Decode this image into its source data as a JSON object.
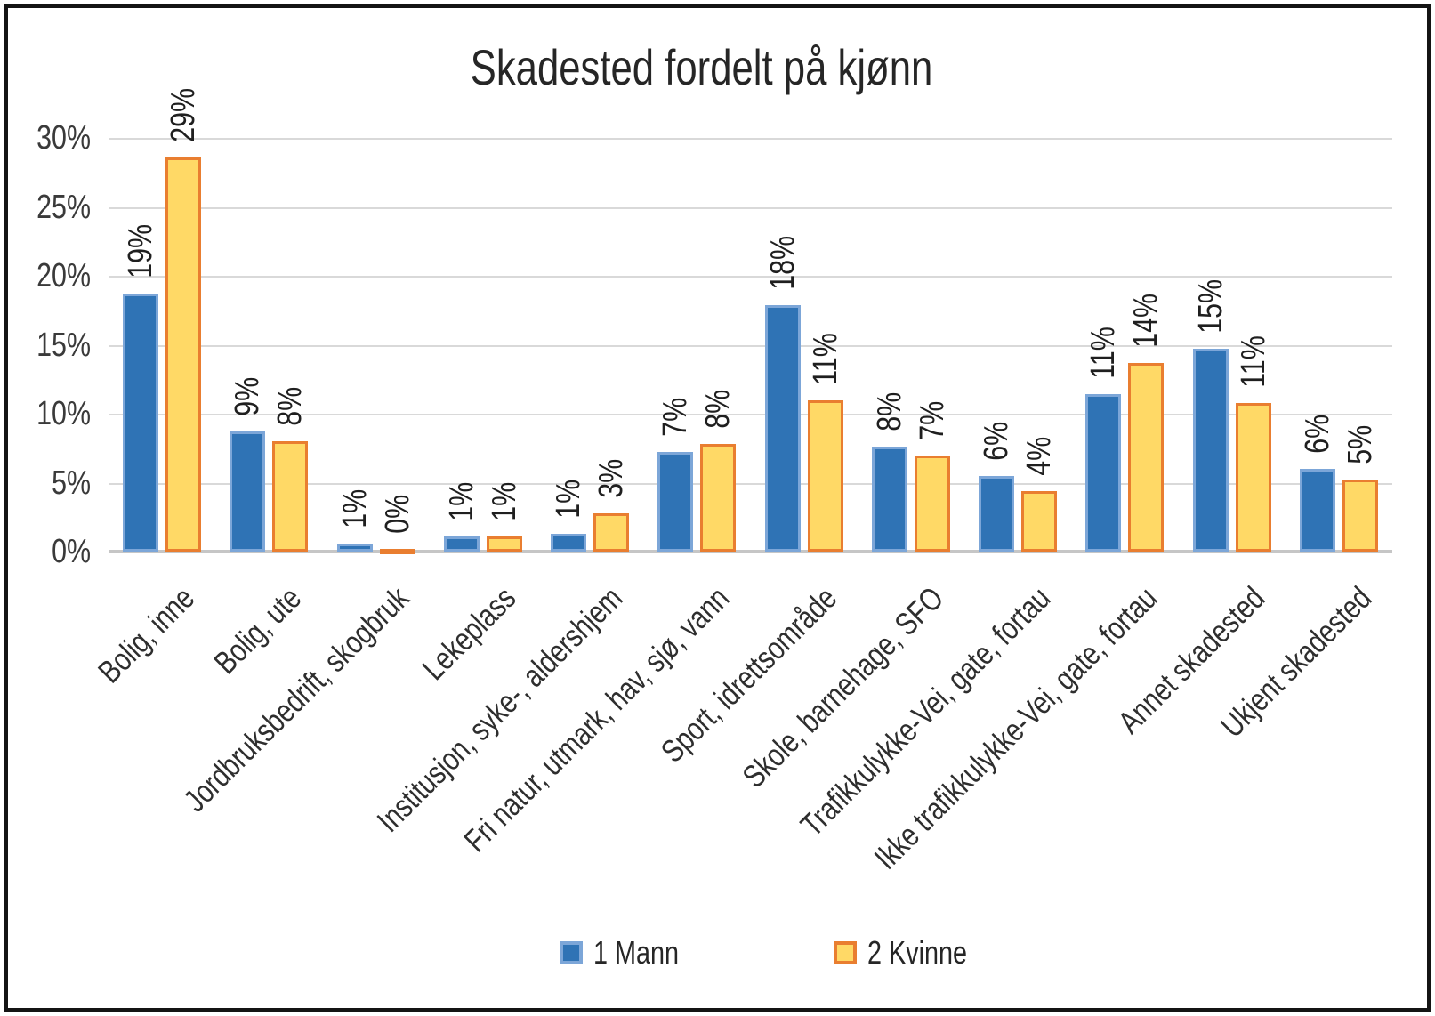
{
  "chart_data": {
    "type": "bar",
    "title": "Skadested fordelt på kjønn",
    "categories": [
      "Bolig, inne",
      "Bolig, ute",
      "Jordbruksbedrift, skogbruk",
      "Lekeplass",
      "Institusjon, syke-, aldershjem",
      "Fri natur, utmark, hav, sjø, vann",
      "Sport, idrettsområde",
      "Skole, barnehage, SFO",
      "Trafikkulykke-Vei, gate, fortau",
      "Ikke trafikkulykke-Vei, gate, fortau",
      "Annet skadested",
      "Ukjent skadested"
    ],
    "series": [
      {
        "name": "1 Mann",
        "fill": "#2F73B5",
        "border": "#7CA6D8",
        "values": [
          18.7,
          8.7,
          0.6,
          1.1,
          1.3,
          7.2,
          17.9,
          7.6,
          5.5,
          11.4,
          14.7,
          6.0
        ],
        "labels": [
          "19%",
          "9%",
          "1%",
          "1%",
          "1%",
          "7%",
          "18%",
          "8%",
          "6%",
          "11%",
          "15%",
          "6%"
        ]
      },
      {
        "name": "2 Kvinne",
        "fill": "#FFD966",
        "border": "#E97E30",
        "values": [
          28.6,
          8.0,
          0.2,
          1.1,
          2.8,
          7.8,
          11.0,
          7.0,
          4.4,
          13.7,
          10.8,
          5.2
        ],
        "labels": [
          "29%",
          "8%",
          "0%",
          "1%",
          "3%",
          "8%",
          "11%",
          "7%",
          "4%",
          "14%",
          "11%",
          "5%"
        ]
      }
    ],
    "y_axis": {
      "min": 0,
      "max": 30,
      "step": 5,
      "tick_labels": [
        "0%",
        "5%",
        "10%",
        "15%",
        "20%",
        "25%",
        "30%"
      ]
    },
    "grid": true,
    "legend_position": "bottom",
    "colors": {
      "grid": "#D9D9D9",
      "axis": "#C6C6C6",
      "text": "#262626",
      "frame_border": "#141414",
      "background": "#FFFFFF"
    }
  }
}
